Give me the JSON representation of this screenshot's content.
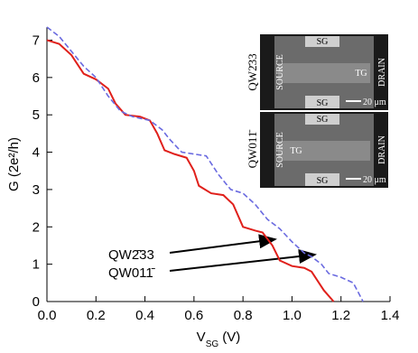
{
  "chart_data": {
    "type": "line",
    "x_label": [
      "V",
      "SG",
      " (V)"
    ],
    "y_label": "G (2e²/h)",
    "xlim": [
      0,
      1.4
    ],
    "ylim": [
      0,
      7.35
    ],
    "xticks": [
      {
        "value": 0,
        "label": "0.0"
      },
      {
        "value": 0.2,
        "label": "0.2"
      },
      {
        "value": 0.4,
        "label": "0.4"
      },
      {
        "value": 0.6,
        "label": "0.6"
      },
      {
        "value": 0.8,
        "label": "0.8"
      },
      {
        "value": 1.0,
        "label": "1.0"
      },
      {
        "value": 1.2,
        "label": "1.2"
      },
      {
        "value": 1.4,
        "label": "1.4"
      }
    ],
    "yticks": [
      0,
      1,
      2,
      3,
      4,
      5,
      6,
      7
    ],
    "series": [
      {
        "name": "QW2̄33",
        "color": "#e0201b",
        "dash": "solid",
        "x": [
          0,
          0.05,
          0.1,
          0.15,
          0.2,
          0.25,
          0.28,
          0.32,
          0.38,
          0.42,
          0.45,
          0.48,
          0.52,
          0.57,
          0.6,
          0.62,
          0.67,
          0.72,
          0.76,
          0.8,
          0.85,
          0.88,
          0.92,
          0.95,
          1.0,
          1.05,
          1.08,
          1.1,
          1.13,
          1.17
        ],
        "values": [
          7.0,
          6.9,
          6.6,
          6.1,
          5.95,
          5.7,
          5.3,
          5.0,
          4.95,
          4.85,
          4.5,
          4.05,
          3.95,
          3.85,
          3.5,
          3.1,
          2.9,
          2.85,
          2.6,
          2.0,
          1.9,
          1.85,
          1.5,
          1.1,
          0.95,
          0.9,
          0.8,
          0.6,
          0.3,
          0
        ]
      },
      {
        "name": "QW011̄",
        "color": "#6a6ae0",
        "dash": "dashed",
        "x": [
          0,
          0.05,
          0.1,
          0.15,
          0.2,
          0.25,
          0.3,
          0.35,
          0.42,
          0.47,
          0.5,
          0.55,
          0.6,
          0.65,
          0.7,
          0.75,
          0.8,
          0.85,
          0.9,
          0.95,
          1.0,
          1.05,
          1.08,
          1.12,
          1.15,
          1.2,
          1.25,
          1.27,
          1.29
        ],
        "values": [
          7.35,
          7.1,
          6.7,
          6.3,
          6.0,
          5.5,
          5.1,
          4.95,
          4.85,
          4.6,
          4.35,
          4.0,
          3.95,
          3.9,
          3.4,
          3.0,
          2.9,
          2.6,
          2.2,
          1.95,
          1.6,
          1.3,
          1.2,
          1.0,
          0.75,
          0.65,
          0.5,
          0.25,
          0
        ]
      }
    ],
    "insets": [
      {
        "tag": "QW2̄33",
        "top_gate": "SG",
        "bottom_gate": "SG",
        "middle_gate": "TG",
        "left": "SOURCE",
        "right": "DRAIN",
        "scale": "20 μm"
      },
      {
        "tag": "QW011̄",
        "top_gate": "SG",
        "bottom_gate": "SG",
        "middle_gate": "TG",
        "left": "SOURCE",
        "right": "DRAIN",
        "scale": "20 μm"
      }
    ]
  }
}
